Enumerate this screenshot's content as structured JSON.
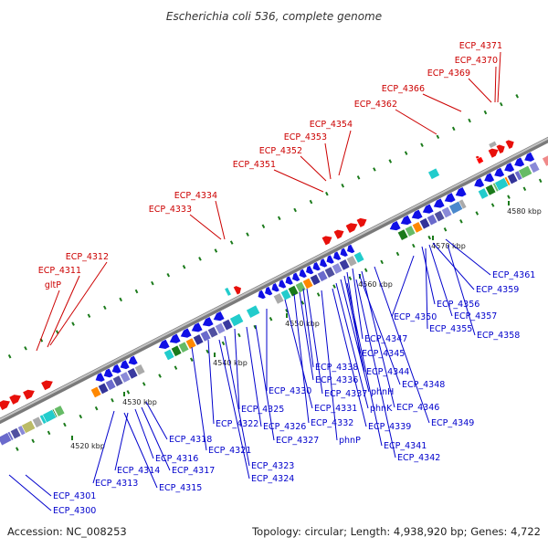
{
  "title": "Escherichia coli 536, complete genome",
  "footer": {
    "accession": "Accession: NC_008253",
    "summary": "Topology: circular; Length: 4,938,920 bp; Genes: 4,722"
  },
  "colors": {
    "forward_gene": "#e8100b",
    "reverse_gene": "#1010e6",
    "forward_label": "#cc0000",
    "reverse_label": "#0000cc",
    "backbone": "#999999",
    "tick": "#1a7a1a"
  },
  "scale_ticks": [
    "4520 kbp",
    "4530 kbp",
    "4540 kbp",
    "4550 kbp",
    "4560 kbp",
    "4570 kbp",
    "4580 kbp"
  ],
  "forward_labels": [
    "ECP_4371",
    "ECP_4370",
    "ECP_4369",
    "ECP_4366",
    "ECP_4362",
    "ECP_4354",
    "ECP_4353",
    "ECP_4352",
    "ECP_4351",
    "ECP_4334",
    "ECP_4333",
    "ECP_4312",
    "ECP_4311",
    "gltP"
  ],
  "reverse_labels": [
    "ECP_4361",
    "ECP_4359",
    "ECP_4356",
    "ECP_4357",
    "ECP_4350",
    "ECP_4355",
    "ECP_4358",
    "ECP_4347",
    "ECP_4345",
    "ECP_4338",
    "ECP_4344",
    "ECP_4336",
    "ECP_4348",
    "ECP_4330",
    "ECP_4337",
    "phnH",
    "ECP_4331",
    "ECP_4325",
    "phnK",
    "ECP_4346",
    "ECP_4322",
    "ECP_4326",
    "ECP_4332",
    "ECP_4339",
    "ECP_4349",
    "ECP_4327",
    "phnP",
    "ECP_4318",
    "ECP_4321",
    "ECP_4341",
    "ECP_4316",
    "ECP_4317",
    "ECP_4342",
    "ECP_4314",
    "ECP_4323",
    "ECP_4313",
    "ECP_4324",
    "ECP_4315",
    "ECP_4301",
    "ECP_4300"
  ]
}
